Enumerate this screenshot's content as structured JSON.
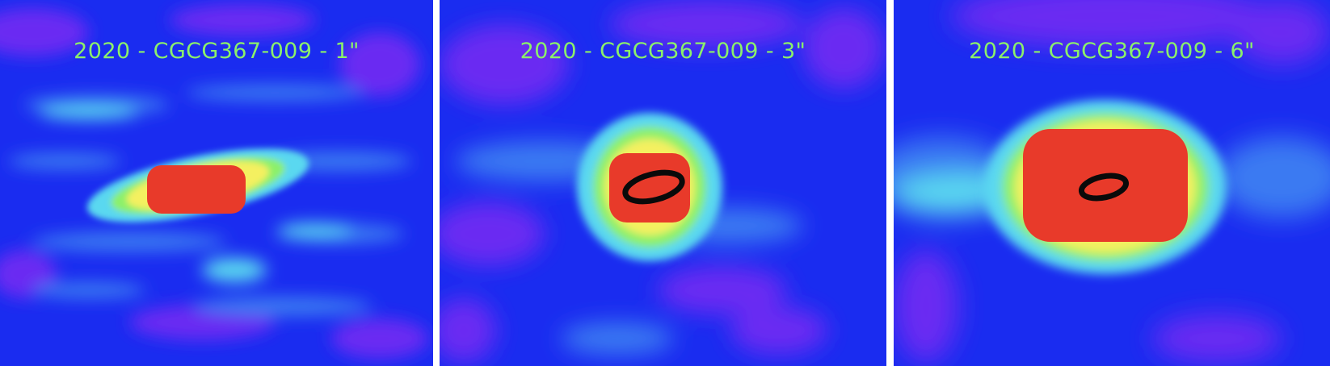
{
  "panels": [
    {
      "title": "2020 - CGCG367-009 - 1\"",
      "resolution": "1\"",
      "has_beam_ellipse": false
    },
    {
      "title": "2020 - CGCG367-009 - 3\"",
      "resolution": "3\"",
      "has_beam_ellipse": true
    },
    {
      "title": "2020 - CGCG367-009 - 6\"",
      "resolution": "6\"",
      "has_beam_ellipse": true
    }
  ],
  "colormap": [
    "#6a2cf2",
    "#1a2cf0",
    "#3a7af2",
    "#5ad8f0",
    "#8cf06a",
    "#f4f060",
    "#f08a3a",
    "#e83a2a"
  ],
  "title_color": "#8cf06a",
  "separator_color": "#ffffff"
}
